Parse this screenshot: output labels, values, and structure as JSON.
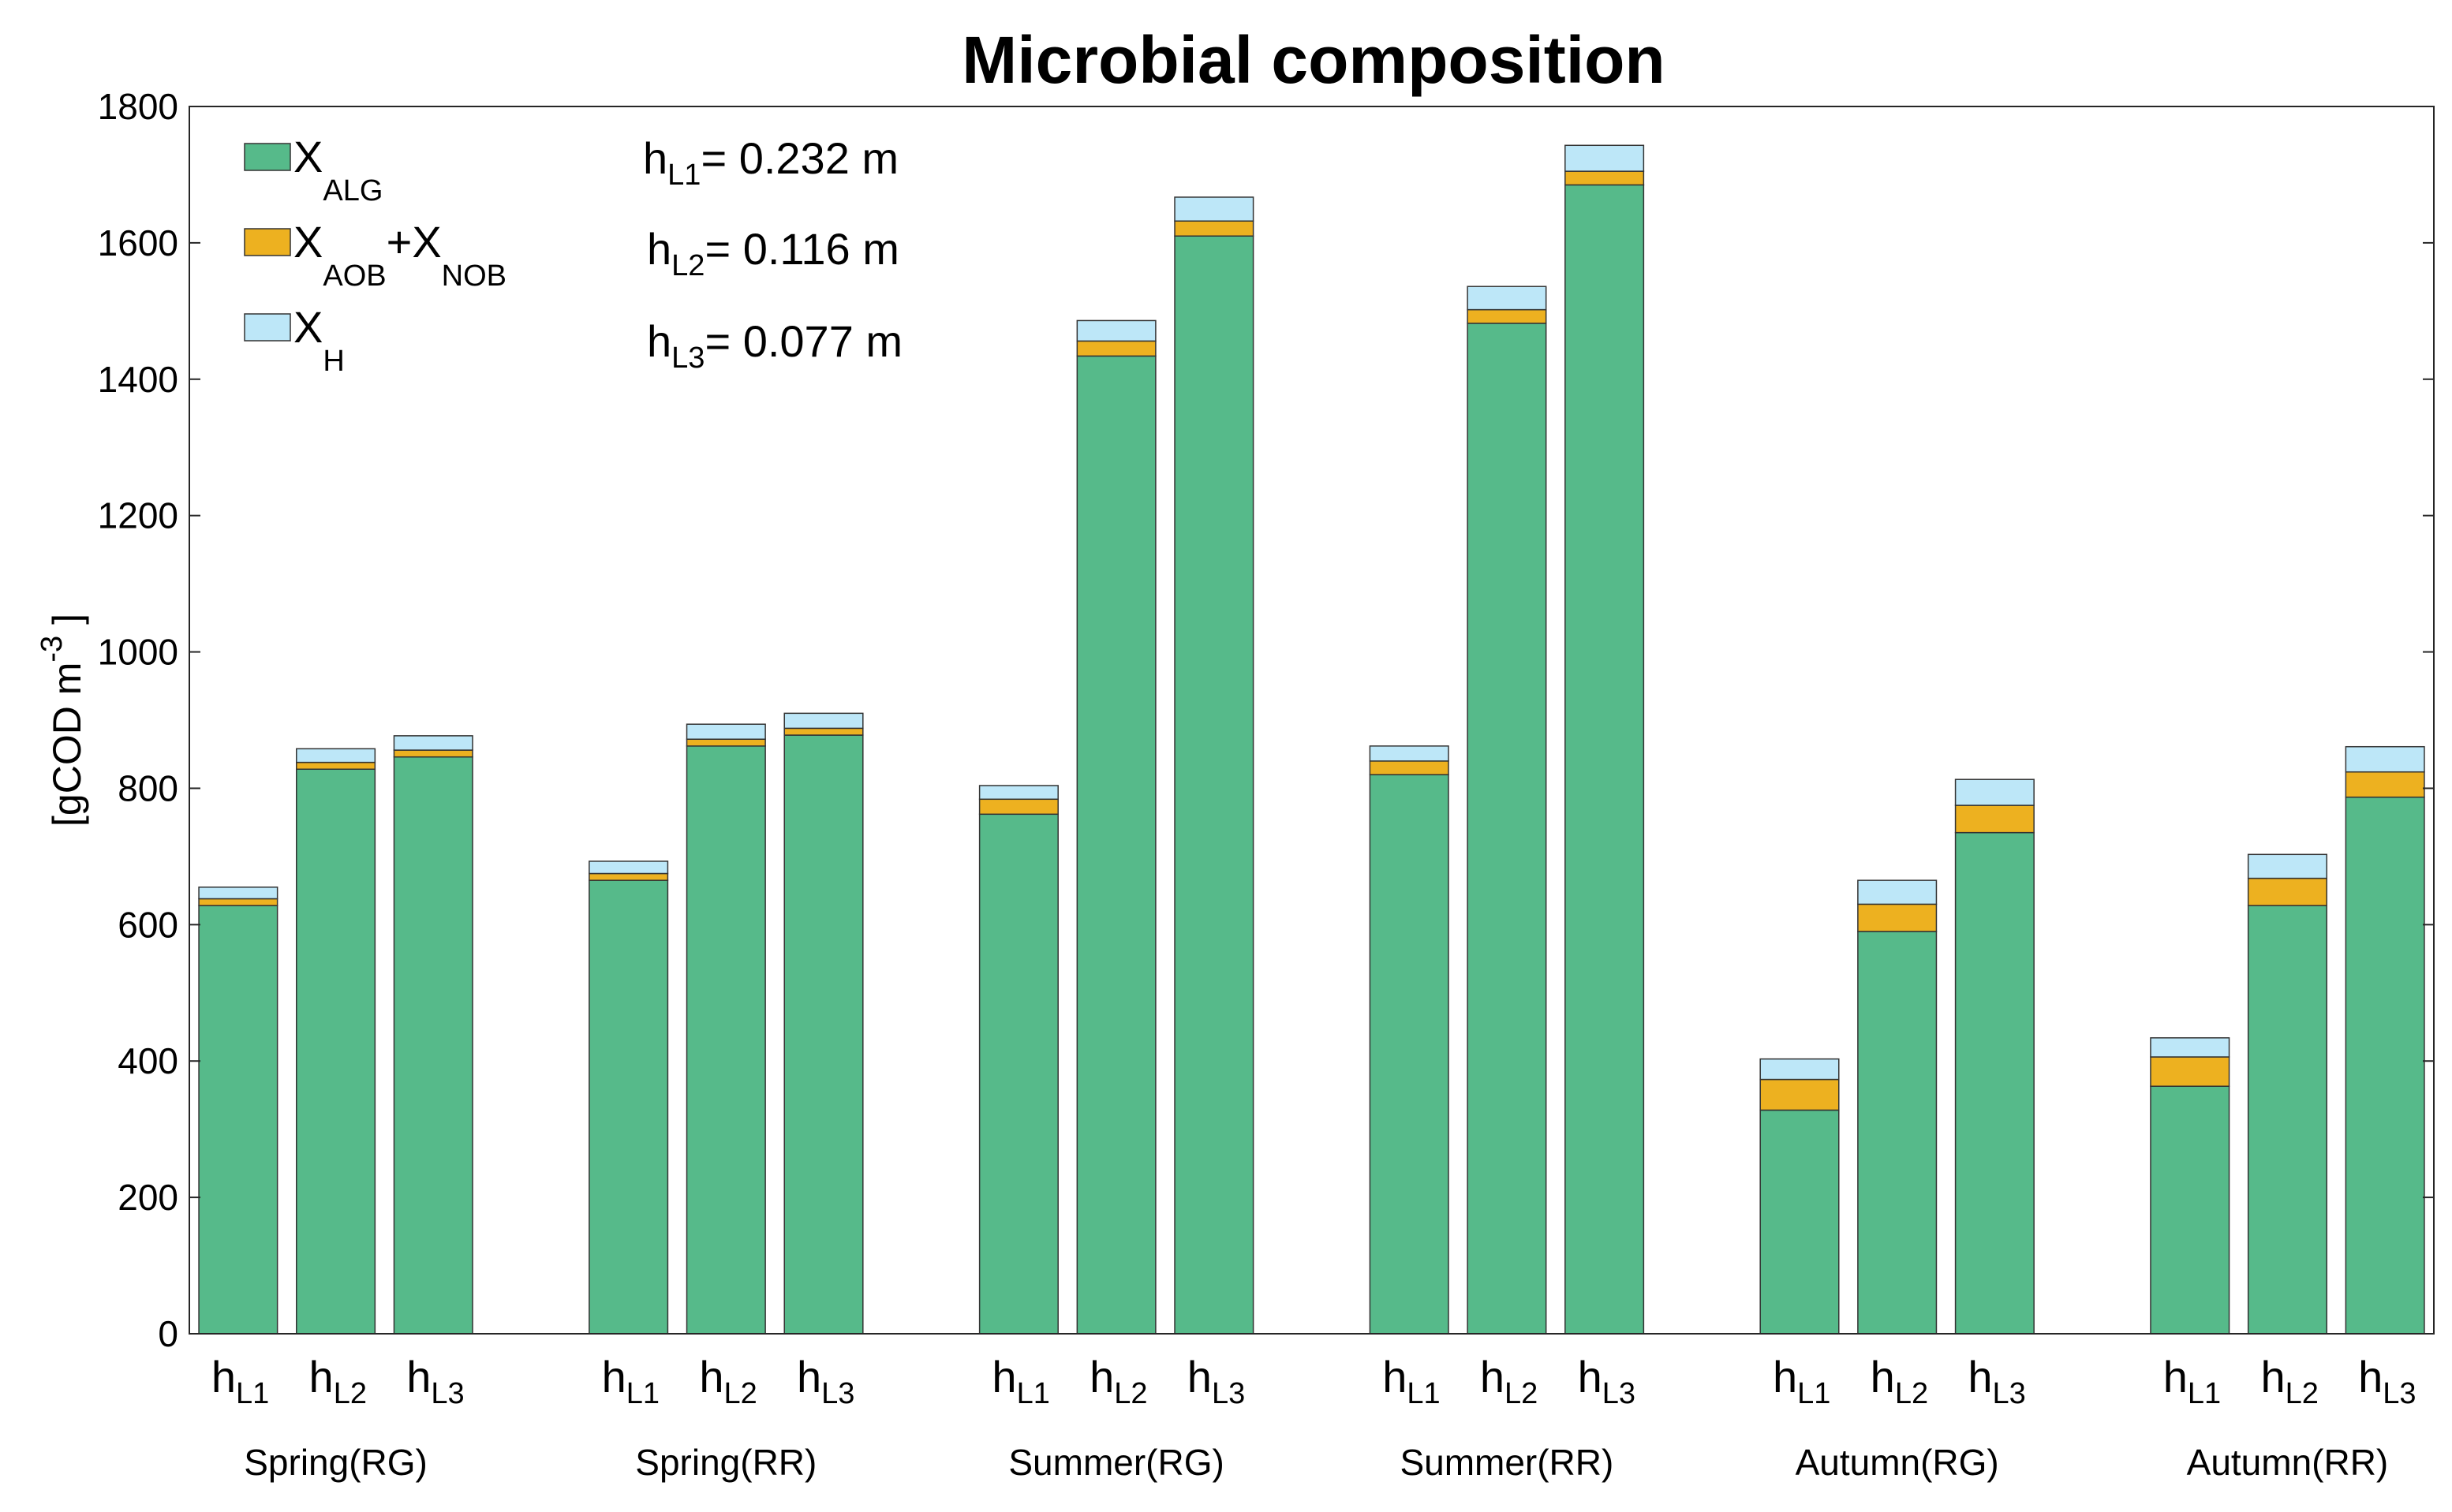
{
  "chart_data": {
    "type": "bar",
    "stacked": true,
    "title": "Microbial composition",
    "ylabel": "[gCOD m-3]",
    "ylabel_base": "[gCOD m",
    "ylabel_sup": "-3",
    "ylabel_end": "]",
    "ylim": [
      0,
      1800
    ],
    "yticks": [
      "0",
      "200",
      "400",
      "600",
      "800",
      "1000",
      "1200",
      "1400",
      "1600",
      "1800"
    ],
    "grid": false,
    "legend_position": "top-left",
    "bar_labels": [
      {
        "main": "h",
        "sub": "L1"
      },
      {
        "main": "h",
        "sub": "L2"
      },
      {
        "main": "h",
        "sub": "L3"
      }
    ],
    "groups": [
      "Spring(RG)",
      "Spring(RR)",
      "Summer(RG)",
      "Summer(RR)",
      "Autumn(RG)",
      "Autumn(RR)"
    ],
    "series": [
      {
        "name": "XALG",
        "legend": {
          "main": "X",
          "sub": "ALG"
        },
        "color": "#56BA8A",
        "values": [
          628,
          828,
          846,
          665,
          862,
          878,
          762,
          1434,
          1610,
          820,
          1482,
          1685,
          328,
          590,
          735,
          363,
          628,
          787
        ]
      },
      {
        "name": "XAOB+XNOB",
        "legend": {
          "main1": "X",
          "sub1": "AOB",
          "plus": "+",
          "main2": "X",
          "sub2": "NOB"
        },
        "color": "#EDB120",
        "values": [
          10,
          10,
          10,
          10,
          10,
          10,
          22,
          22,
          22,
          20,
          20,
          20,
          45,
          40,
          40,
          43,
          40,
          37
        ]
      },
      {
        "name": "XH",
        "legend": {
          "main": "X",
          "sub": "H"
        },
        "color": "#BDE7F8",
        "values": [
          17,
          20,
          21,
          18,
          22,
          22,
          20,
          30,
          35,
          22,
          34,
          38,
          30,
          35,
          38,
          28,
          35,
          37
        ]
      }
    ],
    "annotations": [
      {
        "main": "h",
        "sub": "L1",
        "text": "= 0.232 m"
      },
      {
        "main": "h",
        "sub": "L2",
        "text": "= 0.116 m"
      },
      {
        "main": "h",
        "sub": "L3",
        "text": "= 0.077 m"
      }
    ]
  }
}
